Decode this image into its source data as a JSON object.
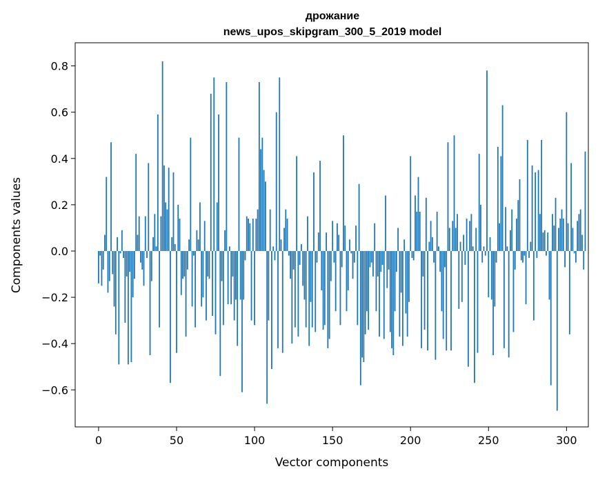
{
  "chart_data": {
    "type": "bar",
    "title_lines": [
      "дрожание",
      "news_upos_skipgram_300_5_2019 model"
    ],
    "xlabel": "Vector components",
    "ylabel": "Components values",
    "xlim": [
      -15,
      314
    ],
    "ylim": [
      -0.76,
      0.9
    ],
    "x_ticks": [
      0,
      50,
      100,
      150,
      200,
      250,
      300
    ],
    "x_tick_labels": [
      "0",
      "50",
      "100",
      "150",
      "200",
      "250",
      "300"
    ],
    "y_ticks": [
      -0.6,
      -0.4,
      -0.2,
      0.0,
      0.2,
      0.4,
      0.6,
      0.8
    ],
    "y_tick_labels": [
      "−0.6",
      "−0.4",
      "−0.2",
      "0.0",
      "0.2",
      "0.4",
      "0.6",
      "0.8"
    ],
    "bar_color": "#1f77b4",
    "grid": false,
    "legend": "none",
    "values": [
      -0.14,
      -0.02,
      -0.15,
      -0.08,
      0.07,
      0.32,
      -0.18,
      -0.13,
      0.47,
      -0.1,
      -0.24,
      -0.36,
      0.06,
      -0.49,
      -0.01,
      0.09,
      -0.03,
      -0.31,
      -0.11,
      -0.49,
      -0.09,
      -0.48,
      -0.2,
      -0.12,
      0.42,
      0.07,
      0.15,
      -0.05,
      -0.08,
      -0.15,
      0.15,
      -0.03,
      0.38,
      -0.45,
      -0.13,
      0.06,
      0.16,
      0.02,
      0.59,
      -0.33,
      0.15,
      0.82,
      0.37,
      0.21,
      0.18,
      0.36,
      -0.57,
      0.06,
      0.34,
      0.03,
      -0.44,
      0.2,
      0.14,
      -0.19,
      -0.12,
      -0.11,
      -0.37,
      -0.08,
      0.05,
      0.49,
      -0.24,
      -0.02,
      -0.33,
      0.09,
      0.05,
      0.21,
      -0.24,
      -0.2,
      0.13,
      -0.3,
      -0.11,
      -0.12,
      0.68,
      -0.28,
      0.75,
      -0.36,
      0.21,
      0.59,
      -0.54,
      -0.13,
      -0.32,
      0.09,
      0.73,
      -0.23,
      0.02,
      -0.23,
      -0.11,
      -0.3,
      -0.21,
      -0.41,
      0.49,
      -0.21,
      -0.61,
      -0.21,
      -0.04,
      0.15,
      0.14,
      0.12,
      -0.3,
      0.14,
      -0.32,
      0.14,
      0.18,
      0.73,
      0.44,
      0.49,
      0.35,
      0.3,
      -0.66,
      -0.3,
      0.18,
      -0.51,
      0.02,
      -0.04,
      0.6,
      -0.42,
      0.75,
      0.05,
      -0.44,
      0.1,
      0.18,
      0.14,
      -0.02,
      -0.12,
      -0.4,
      -0.08,
      -0.33,
      0.41,
      -0.37,
      -0.06,
      0.03,
      -0.15,
      -0.21,
      -0.33,
      0.15,
      -0.41,
      -0.22,
      -0.33,
      0.34,
      -0.35,
      -0.05,
      0.08,
      0.39,
      -0.17,
      -0.34,
      -0.32,
      0.08,
      -0.42,
      -0.38,
      -0.13,
      0.13,
      -0.05,
      -0.26,
      0.12,
      0.07,
      -0.32,
      -0.07,
      0.5,
      0.11,
      -0.26,
      -0.17,
      0.05,
      -0.01,
      -0.12,
      -0.05,
      0.11,
      -0.32,
      0.29,
      -0.58,
      -0.46,
      -0.48,
      -0.36,
      -0.26,
      -0.34,
      -0.07,
      -0.05,
      -0.11,
      0.12,
      -0.26,
      -0.11,
      -0.37,
      -0.09,
      -0.06,
      -0.38,
      0.24,
      -0.16,
      -0.08,
      -0.35,
      -0.42,
      -0.45,
      -0.26,
      -0.09,
      0.1,
      -0.37,
      -0.18,
      -0.41,
      0.05,
      -0.27,
      -0.37,
      -0.22,
      0.41,
      -0.03,
      -0.04,
      0.24,
      0.17,
      0.32,
      0.17,
      -0.42,
      -0.11,
      -0.34,
      0.23,
      -0.43,
      0.04,
      0.13,
      0.06,
      -0.05,
      -0.47,
      0.17,
      0.02,
      -0.09,
      -0.26,
      -0.38,
      -0.07,
      -0.43,
      0.47,
      0.1,
      -0.43,
      0.13,
      0.5,
      0.1,
      0.16,
      -0.25,
      0.04,
      -0.22,
      0.07,
      -0.06,
      0.14,
      -0.5,
      0.13,
      0.16,
      0.02,
      -0.57,
      0.1,
      -0.44,
      0.42,
      0.2,
      -0.05,
      0.02,
      -0.02,
      0.78,
      -0.2,
      0.06,
      -0.21,
      -0.45,
      -0.24,
      -0.05,
      0.45,
      0.12,
      0.41,
      0.63,
      -0.42,
      0.19,
      0.02,
      -0.46,
      0.09,
      0.18,
      -0.35,
      -0.08,
      0.14,
      0.22,
      0.31,
      -0.04,
      -0.05,
      -0.02,
      -0.23,
      0.48,
      -0.03,
      0.04,
      0.37,
      -0.3,
      0.34,
      -0.03,
      0.35,
      0.16,
      0.48,
      0.08,
      0.09,
      -0.02,
      0.08,
      -0.21,
      -0.58,
      0.16,
      0.11,
      0.23,
      -0.69,
      0.1,
      0.14,
      0.18,
      0.14,
      -0.07,
      0.6,
      0.12,
      -0.36,
      0.38,
      0.1,
      -0.01,
      -0.05,
      0.13,
      0.16,
      0.18,
      0.07,
      -0.08,
      0.43
    ]
  }
}
